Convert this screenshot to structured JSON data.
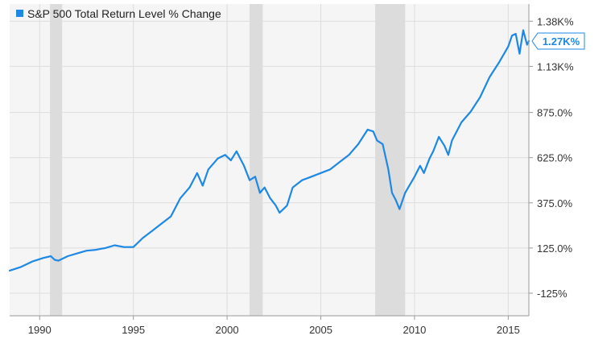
{
  "legend": {
    "label": "S&P 500 Total Return Level % Change"
  },
  "colors": {
    "series": "#1e88e5",
    "recession": "#dcdcdc",
    "grid": "#dddddd",
    "axis": "#9a9a9a",
    "plot_bg": "#f5f5f5"
  },
  "chart_data": {
    "type": "line",
    "title": "",
    "xlabel": "",
    "ylabel": "",
    "xlim": [
      1988.4,
      2016.1
    ],
    "ylim": [
      -250,
      1475
    ],
    "grid": true,
    "legend_position": "top-left",
    "x_ticks": [
      {
        "value": 1990,
        "label": "1990"
      },
      {
        "value": 1995,
        "label": "1995"
      },
      {
        "value": 2000,
        "label": "2000"
      },
      {
        "value": 2005,
        "label": "2005"
      },
      {
        "value": 2010,
        "label": "2010"
      },
      {
        "value": 2015,
        "label": "2015"
      }
    ],
    "y_ticks": [
      {
        "value": 1380,
        "label": "1.38K%"
      },
      {
        "value": 1130,
        "label": "1.13K%"
      },
      {
        "value": 875,
        "label": "875.0%"
      },
      {
        "value": 625,
        "label": "625.0%"
      },
      {
        "value": 375,
        "label": "375.0%"
      },
      {
        "value": 125,
        "label": "125.0%"
      },
      {
        "value": -125,
        "label": "-125%"
      }
    ],
    "recessions": [
      [
        1990.55,
        1991.2
      ],
      [
        2001.2,
        2001.9
      ],
      [
        2007.9,
        2009.5
      ]
    ],
    "last_value": {
      "value": 1270,
      "label": "1.27K%"
    },
    "series": [
      {
        "name": "S&P 500 Total Return Level % Change",
        "x": [
          1988.4,
          1989.0,
          1989.6,
          1990.2,
          1990.6,
          1990.8,
          1991.0,
          1991.5,
          1992.0,
          1992.5,
          1993.0,
          1993.5,
          1994.0,
          1994.5,
          1995.0,
          1995.5,
          1996.0,
          1996.5,
          1997.0,
          1997.5,
          1998.0,
          1998.4,
          1998.7,
          1999.0,
          1999.5,
          1999.9,
          2000.2,
          2000.5,
          2000.7,
          2000.9,
          2001.2,
          2001.5,
          2001.75,
          2002.0,
          2002.3,
          2002.6,
          2002.8,
          2003.0,
          2003.2,
          2003.5,
          2004.0,
          2004.5,
          2005.0,
          2005.5,
          2006.0,
          2006.5,
          2007.0,
          2007.5,
          2007.8,
          2008.0,
          2008.3,
          2008.6,
          2008.8,
          2009.0,
          2009.2,
          2009.5,
          2010.0,
          2010.3,
          2010.5,
          2010.8,
          2011.0,
          2011.3,
          2011.6,
          2011.8,
          2012.0,
          2012.5,
          2013.0,
          2013.5,
          2014.0,
          2014.5,
          2015.0,
          2015.2,
          2015.4,
          2015.6,
          2015.8,
          2016.0,
          2016.1
        ],
        "values": [
          0,
          20,
          50,
          70,
          80,
          60,
          55,
          80,
          95,
          110,
          115,
          125,
          140,
          130,
          130,
          180,
          220,
          260,
          300,
          400,
          460,
          540,
          470,
          560,
          620,
          640,
          610,
          660,
          620,
          580,
          500,
          520,
          430,
          460,
          400,
          360,
          320,
          340,
          360,
          460,
          500,
          520,
          540,
          560,
          600,
          640,
          700,
          780,
          770,
          720,
          700,
          560,
          430,
          390,
          340,
          430,
          520,
          580,
          540,
          620,
          660,
          740,
          690,
          640,
          720,
          820,
          880,
          960,
          1070,
          1150,
          1240,
          1300,
          1310,
          1200,
          1330,
          1250,
          1270
        ]
      }
    ]
  }
}
